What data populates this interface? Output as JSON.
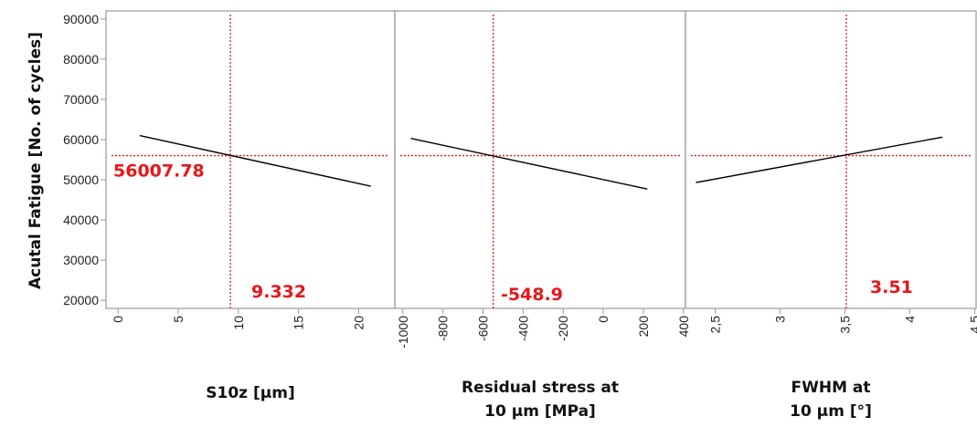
{
  "chart_data": {
    "type": "line",
    "ylabel": "Acutal Fatigue [No. of cycles]",
    "ylim": [
      18000,
      92000
    ],
    "yticks": [
      20000,
      30000,
      40000,
      50000,
      60000,
      70000,
      80000,
      90000
    ],
    "ytick_labels": [
      "20000",
      "30000",
      "40000",
      "50000",
      "60000",
      "70000",
      "80000",
      "90000"
    ],
    "predicted_value": 56007.78,
    "predicted_label": "56007.78",
    "grid": false,
    "colors": {
      "line": "#000000",
      "crosshair": "#e8161a",
      "frame": "#999999",
      "label": "#e8161a"
    },
    "panels": [
      {
        "xlabel_lines": [
          "S10z [µm]"
        ],
        "xlim": [
          -1,
          23
        ],
        "xticks": [
          0,
          5,
          10,
          15,
          20
        ],
        "xtick_labels": [
          "0",
          "5",
          "10",
          "15",
          "20"
        ],
        "x": [
          1.8,
          21
        ],
        "y": [
          61000,
          48400
        ],
        "current_x": 9.332,
        "current_label": "9.332"
      },
      {
        "xlabel_lines": [
          "Residual stress at",
          "10 µm [MPa]"
        ],
        "xlim": [
          -1040,
          410
        ],
        "xticks": [
          -1000,
          -800,
          -600,
          -400,
          -200,
          0,
          200,
          400
        ],
        "xtick_labels": [
          "-1000",
          "-800",
          "-600",
          "-400",
          "-200",
          "0",
          "200",
          "400"
        ],
        "x": [
          -960,
          220
        ],
        "y": [
          60300,
          47700
        ],
        "current_x": -548.9,
        "current_label": "-548.9"
      },
      {
        "xlabel_lines": [
          "FWHM at",
          "10 µm [°]"
        ],
        "xlim": [
          2.27,
          4.51
        ],
        "xticks": [
          2.5,
          3,
          3.5,
          4,
          4.5
        ],
        "xtick_labels": [
          "2,5",
          "3",
          "3,5",
          "4",
          "4.5"
        ],
        "x": [
          2.35,
          4.25
        ],
        "y": [
          49300,
          60600
        ],
        "current_x": 3.51,
        "current_label": "3.51"
      }
    ]
  }
}
